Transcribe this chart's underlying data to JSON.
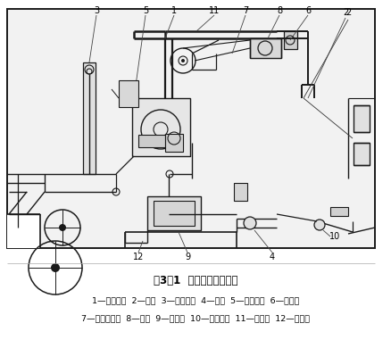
{
  "title": "图3－1  引纬机构基本结构",
  "caption_line1": "1—水泵泵体  2—凸轮  3—泵凸轮杆  4—泵杆  5—限位螺钉  6—压纱器",
  "caption_line2": "7—压纱器凸轮  8—喷嘴  9—浮筒箱  10—引纬踏板  11—喷水管  12—进水管",
  "line_color": "#1a1a1a",
  "bg_color": "#f2f2f2",
  "label_color": "#1a1a1a"
}
